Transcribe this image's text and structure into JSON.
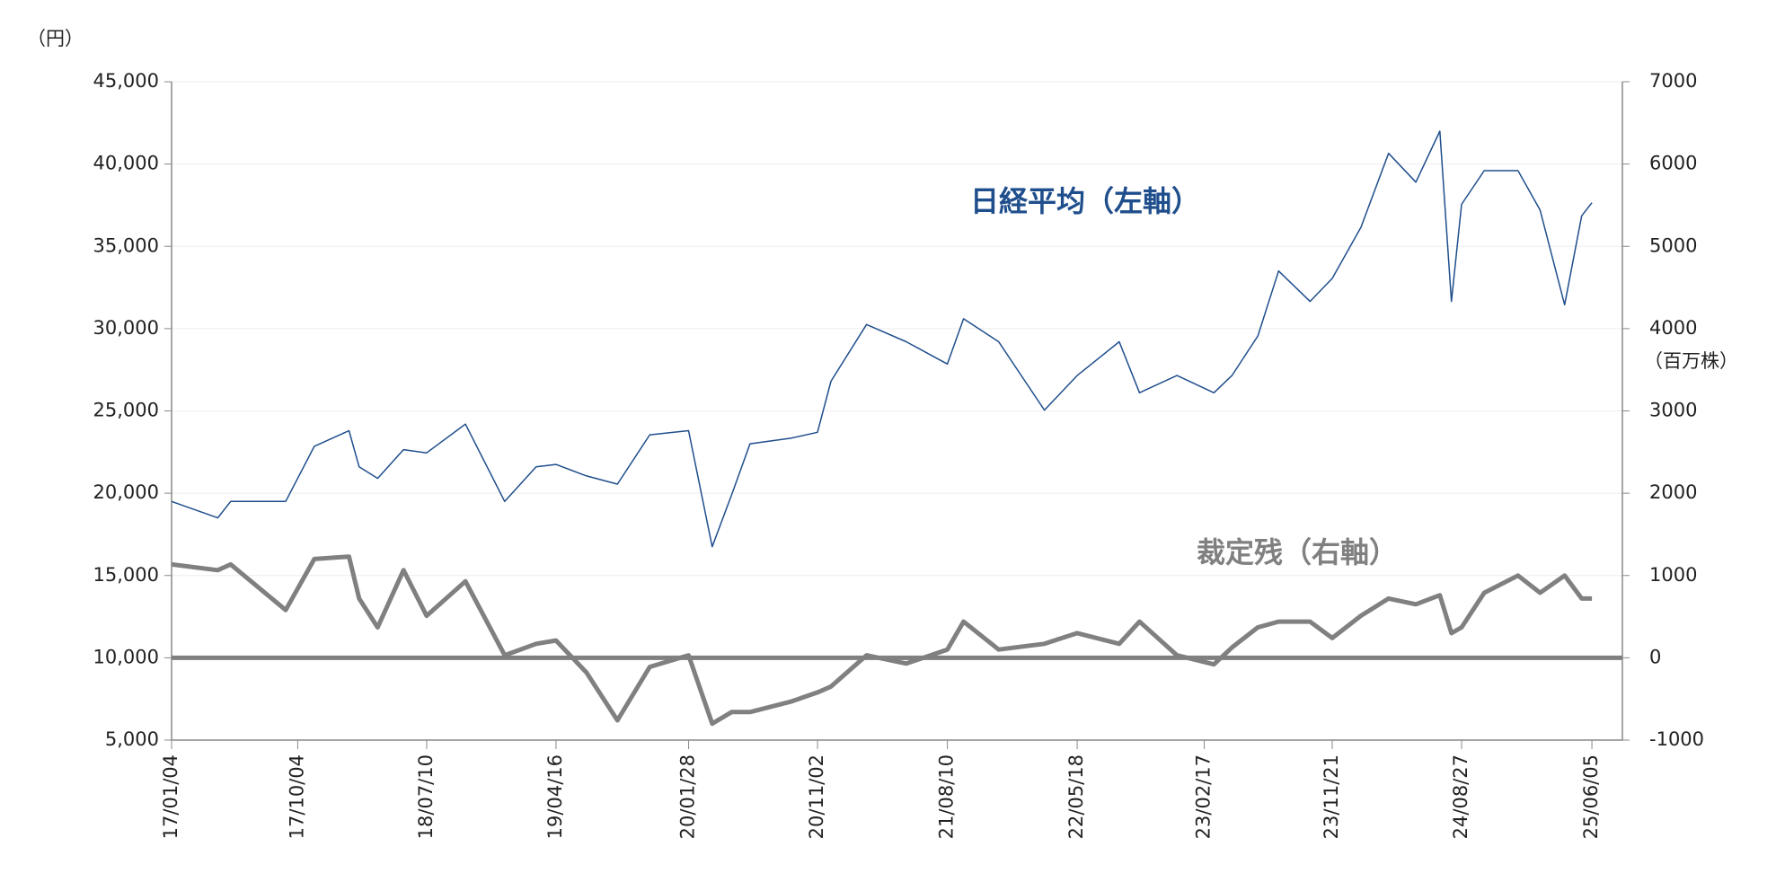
{
  "chart_data": {
    "type": "line",
    "y_unit_label": "（円）",
    "y2_unit_label": "（百万株）",
    "x": [
      "17/01/04",
      "17/04/14",
      "17/05/12",
      "17/09/08",
      "17/11/09",
      "18/01/23",
      "18/02/14",
      "18/03/26",
      "18/05/21",
      "18/07/10",
      "18/10/02",
      "18/12/26",
      "19/03/04",
      "19/04/16",
      "19/06/21",
      "19/08/27",
      "19/11/05",
      "20/01/28",
      "20/03/19",
      "20/04/30",
      "20/06/09",
      "20/09/07",
      "20/11/02",
      "20/12/01",
      "21/02/16",
      "21/05/13",
      "21/08/10",
      "21/09/14",
      "21/11/29",
      "22/03/08",
      "22/05/18",
      "22/08/17",
      "22/09/30",
      "22/12/20",
      "23/03/10",
      "23/04/18",
      "23/06/13",
      "23/07/28",
      "23/10/04",
      "23/11/21",
      "24/01/22",
      "24/03/22",
      "24/05/20",
      "24/07/11",
      "24/08/05",
      "24/08/27",
      "24/10/15",
      "24/12/27",
      "25/02/13",
      "25/04/07",
      "25/05/14",
      "25/06/05"
    ],
    "series": [
      {
        "name": "日経平均（左軸）",
        "color": "#1f4e8c",
        "axis": "y",
        "values": [
          19500,
          18500,
          19500,
          19500,
          22850,
          23800,
          21600,
          20900,
          22650,
          22450,
          24200,
          19500,
          21600,
          21750,
          21050,
          20550,
          23550,
          23800,
          16750,
          19900,
          23000,
          23350,
          23700,
          26800,
          30250,
          29200,
          27850,
          30600,
          29200,
          25050,
          27150,
          29200,
          26100,
          27150,
          26100,
          27150,
          29550,
          33500,
          31650,
          33050,
          36150,
          40650,
          38900,
          42000,
          31650,
          37550,
          39600,
          39600,
          37200,
          31450,
          36850,
          37650
        ]
      },
      {
        "name": "裁定残（右軸）",
        "color": "#808080",
        "axis": "y2",
        "values": [
          1135,
          1065,
          1135,
          580,
          1200,
          1230,
          720,
          370,
          1065,
          510,
          930,
          30,
          170,
          210,
          -180,
          -760,
          -110,
          30,
          -800,
          -660,
          -660,
          -530,
          -420,
          -350,
          30,
          -70,
          100,
          440,
          100,
          170,
          300,
          170,
          440,
          30,
          -80,
          125,
          370,
          440,
          440,
          240,
          510,
          720,
          650,
          760,
          300,
          370,
          790,
          1000,
          790,
          1000,
          720,
          720
        ]
      }
    ],
    "xlim": [
      "17/01/04",
      "25/08/10"
    ],
    "xticks": [
      "17/01/04",
      "17/10/04",
      "18/07/10",
      "19/04/16",
      "20/01/28",
      "20/11/02",
      "21/08/10",
      "22/05/18",
      "23/02/17",
      "23/11/21",
      "24/08/27",
      "25/06/05"
    ],
    "ylim": [
      5000,
      45000
    ],
    "yticks": [
      {
        "value": 5000,
        "label": "5,000"
      },
      {
        "value": 10000,
        "label": "10,000"
      },
      {
        "value": 15000,
        "label": "15,000"
      },
      {
        "value": 20000,
        "label": "20,000"
      },
      {
        "value": 25000,
        "label": "25,000"
      },
      {
        "value": 30000,
        "label": "30,000"
      },
      {
        "value": 35000,
        "label": "35,000"
      },
      {
        "value": 40000,
        "label": "40,000"
      },
      {
        "value": 45000,
        "label": "45,000"
      }
    ],
    "y2lim": [
      -1000,
      7000
    ],
    "y2ticks": [
      -1000,
      0,
      1000,
      2000,
      3000,
      4000,
      5000,
      6000,
      7000
    ],
    "grid": true,
    "y2_zero_line": true
  }
}
